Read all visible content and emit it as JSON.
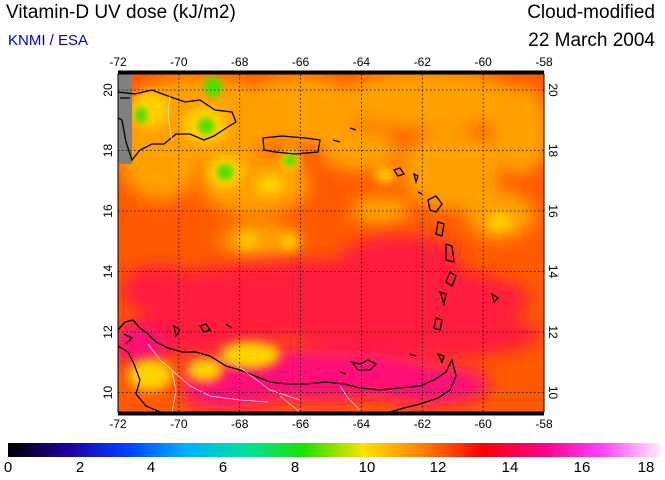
{
  "header": {
    "title": "Vitamin-D UV dose (kJ/m2)",
    "credit": "KNMI / ESA",
    "mode": "Cloud-modified",
    "date": "22 March 2004"
  },
  "map": {
    "lon_ticks": [
      "-72",
      "-70",
      "-68",
      "-66",
      "-64",
      "-62",
      "-60",
      "-58"
    ],
    "lat_ticks": [
      "20",
      "18",
      "16",
      "14",
      "12",
      "10"
    ],
    "colors": {
      "ocean": "#ff5a00",
      "high": "#ff1a3c",
      "peak": "#ff0a78",
      "moderate": "#ffa000",
      "low": "#ffd200",
      "lowest": "#50e000",
      "nodata": "#808080"
    }
  },
  "colorbar": {
    "labels": [
      "0",
      "2",
      "4",
      "6",
      "8",
      "10",
      "12",
      "14",
      "16",
      "18"
    ],
    "stops": [
      "#000000",
      "#2000a0",
      "#0040ff",
      "#00b0ff",
      "#00e0a0",
      "#20e000",
      "#ffe000",
      "#ff8000",
      "#ff0000",
      "#ff0080",
      "#ff40ff",
      "#ffe8ff"
    ]
  }
}
